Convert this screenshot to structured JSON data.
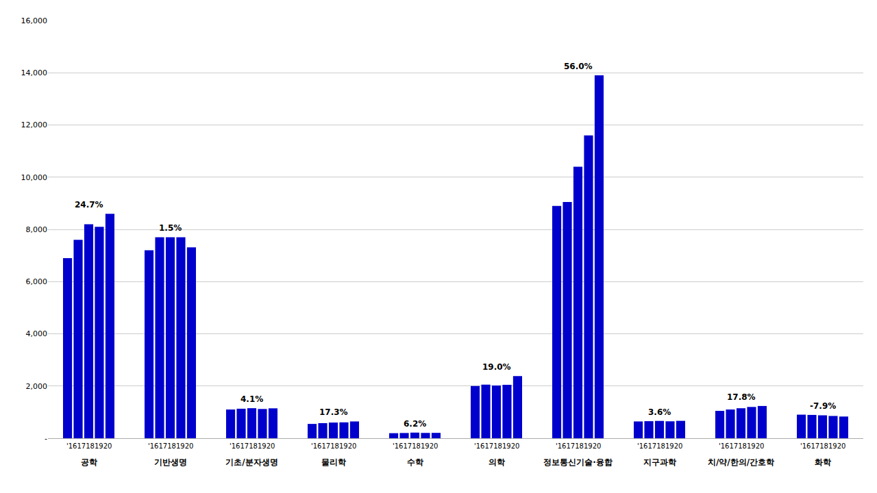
{
  "chart_data": {
    "type": "bar",
    "categories": [
      "공학",
      "기반생명",
      "기초/분자생명",
      "물리학",
      "수학",
      "의학",
      "정보통신기술·융합",
      "지구과학",
      "치/약/한의/간호학",
      "화학"
    ],
    "series": [
      {
        "color": "#0000CC",
        "values": [
          6900,
          7200,
          1100,
          548,
          193,
          2000,
          8900,
          643,
          1048,
          903
        ]
      },
      {
        "color": "#0000CC",
        "values": [
          7600,
          7700,
          1130,
          578,
          200,
          2050,
          9050,
          653,
          1100,
          893
        ]
      },
      {
        "color": "#0000CC",
        "values": [
          8200,
          7700,
          1150,
          600,
          215,
          2020,
          10400,
          663,
          1148,
          878
        ]
      },
      {
        "color": "#0000CC",
        "values": [
          8100,
          7700,
          1120,
          608,
          203,
          2045,
          11600,
          648,
          1198,
          853
        ]
      },
      {
        "color": "#0000CC",
        "values": [
          8600,
          7310,
          1145,
          643,
          205,
          2380,
          13900,
          666,
          1235,
          831
        ]
      }
    ],
    "ylim": [
      0,
      16000
    ],
    "yticks": [
      {
        "value": 0,
        "label": "-"
      },
      {
        "value": 2000,
        "label": "2,000"
      },
      {
        "value": 4000,
        "label": "4,000"
      },
      {
        "value": 6000,
        "label": "6,000"
      },
      {
        "value": 8000,
        "label": "8,000"
      },
      {
        "value": 10000,
        "label": "10,000"
      },
      {
        "value": 12000,
        "label": "12,000"
      },
      {
        "value": 14000,
        "label": "14,000"
      },
      {
        "value": 16000,
        "label": "16,000"
      }
    ],
    "grid": true,
    "annotations": [
      {
        "category": "공학",
        "text": "24.7%",
        "side": "top"
      },
      {
        "category": "기반생명",
        "text": "1.5%",
        "side": "top"
      },
      {
        "category": "기초/분자생명",
        "text": "4.1%",
        "side": "top"
      },
      {
        "category": "물리학",
        "text": "17.3%",
        "side": "top"
      },
      {
        "category": "수학",
        "text": "6.2%",
        "side": "top"
      },
      {
        "category": "의학",
        "text": "19.0%",
        "side": "top"
      },
      {
        "category": "정보통신기술·융합",
        "text": "56.0%",
        "side": "top"
      },
      {
        "category": "지구과학",
        "text": "3.6%",
        "side": "top"
      },
      {
        "category": "치/약/한의/간호학",
        "text": "17.8%",
        "side": "top"
      },
      {
        "category": "화학",
        "text": "-7.9%",
        "side": "top"
      },
      {
        "category": "공학",
        "text": "'1617181920",
        "side": "bottom"
      },
      {
        "category": "기반생명",
        "text": "'1617181920",
        "side": "bottom"
      },
      {
        "category": "기초/분자생명",
        "text": "'1617181920",
        "side": "bottom"
      },
      {
        "category": "물리학",
        "text": "'1617181920",
        "side": "bottom"
      },
      {
        "category": "수학",
        "text": "'1617181920",
        "side": "bottom"
      },
      {
        "category": "의학",
        "text": "'1617181920",
        "side": "bottom"
      },
      {
        "category": "정보통신기술·융합",
        "text": "'1617181920",
        "side": "bottom"
      },
      {
        "category": "지구과학",
        "text": "'1617181920",
        "side": "bottom"
      },
      {
        "category": "치/약/한의/간호학",
        "text": "'1617181920",
        "side": "bottom"
      },
      {
        "category": "화학",
        "text": "'1617181920",
        "side": "bottom"
      }
    ]
  }
}
